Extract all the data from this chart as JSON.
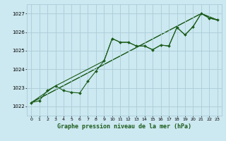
{
  "background_color": "#cce8f0",
  "grid_color": "#aaccd8",
  "line_color": "#1a5c1a",
  "title": "Graphe pression niveau de la mer (hPa)",
  "ylim": [
    1021.5,
    1027.5
  ],
  "xlim": [
    -0.5,
    23.5
  ],
  "yticks": [
    1022,
    1023,
    1024,
    1025,
    1026,
    1027
  ],
  "xticks": [
    0,
    1,
    2,
    3,
    4,
    5,
    6,
    7,
    8,
    9,
    10,
    11,
    12,
    13,
    14,
    15,
    16,
    17,
    18,
    19,
    20,
    21,
    22,
    23
  ],
  "main_x": [
    0,
    1,
    2,
    3,
    4,
    5,
    6,
    7,
    8,
    9,
    10,
    11,
    12,
    13,
    14,
    15,
    16,
    17,
    18,
    19,
    20,
    21,
    22,
    23
  ],
  "main_y": [
    1022.2,
    1022.3,
    1022.85,
    1023.1,
    1022.85,
    1022.75,
    1022.72,
    1023.35,
    1023.9,
    1024.45,
    1025.65,
    1025.45,
    1025.45,
    1025.25,
    1025.25,
    1025.05,
    1025.3,
    1025.25,
    1026.25,
    1025.85,
    1026.3,
    1027.0,
    1026.75,
    1026.65
  ],
  "line2_x": [
    0,
    3,
    9,
    10,
    11,
    12,
    13,
    14,
    15,
    16,
    17,
    18,
    19,
    20,
    21,
    22,
    23
  ],
  "line2_y": [
    1022.2,
    1023.1,
    1024.45,
    1025.65,
    1025.45,
    1025.45,
    1025.25,
    1025.25,
    1025.05,
    1025.3,
    1025.25,
    1026.25,
    1025.85,
    1026.3,
    1027.0,
    1026.75,
    1026.65
  ],
  "line3_x": [
    0,
    21,
    23
  ],
  "line3_y": [
    1022.2,
    1027.0,
    1026.65
  ],
  "line4_x": [
    0,
    21,
    23
  ],
  "line4_y": [
    1022.2,
    1027.0,
    1026.65
  ]
}
